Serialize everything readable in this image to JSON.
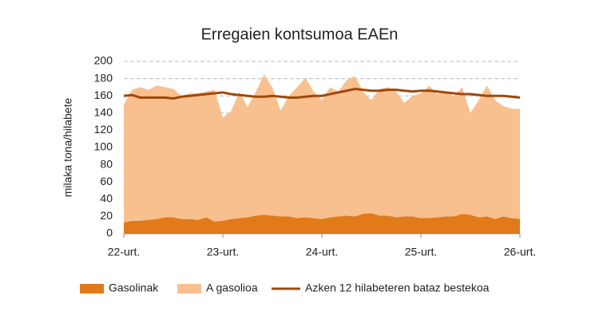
{
  "chart_data": {
    "type": "area",
    "stacked": true,
    "grid": true,
    "legend_position": "bottom",
    "title": "Erregaien kontsumoa EAEn",
    "ylabel": "milaka tona/hilabete",
    "categories": [
      "22-urt.",
      null,
      null,
      null,
      null,
      null,
      null,
      null,
      null,
      null,
      null,
      null,
      "23-urt.",
      null,
      null,
      null,
      null,
      null,
      null,
      null,
      null,
      null,
      null,
      null,
      "24-urt.",
      null,
      null,
      null,
      null,
      null,
      null,
      null,
      null,
      null,
      null,
      null,
      "25-urt.",
      null,
      null,
      null,
      null,
      null,
      null,
      null,
      null,
      null,
      null,
      null,
      "26-urt."
    ],
    "ylim": [
      0,
      200
    ],
    "yticks": [
      0,
      20,
      40,
      60,
      80,
      100,
      120,
      140,
      160,
      180,
      200
    ],
    "series": [
      {
        "name": "Gasolinak",
        "color": "#e07a1a",
        "values": [
          13,
          15,
          15,
          16,
          17,
          19,
          19,
          17,
          17,
          16,
          19,
          14,
          15,
          17,
          18,
          19,
          21,
          22,
          21,
          20,
          20,
          18,
          19,
          18,
          17,
          19,
          20,
          21,
          20,
          23,
          24,
          21,
          21,
          19,
          20,
          20,
          18,
          18,
          19,
          20,
          20,
          23,
          22,
          19,
          20,
          17,
          20,
          18,
          17
        ]
      },
      {
        "name": "A gasolioa",
        "color": "#f9c08f",
        "values": [
          137,
          152,
          155,
          151,
          155,
          151,
          149,
          143,
          146,
          147,
          146,
          153,
          120,
          125,
          147,
          128,
          144,
          163,
          149,
          123,
          140,
          152,
          162,
          147,
          138,
          151,
          145,
          157,
          163,
          142,
          131,
          147,
          149,
          146,
          132,
          140,
          145,
          154,
          143,
          145,
          140,
          147,
          118,
          136,
          152,
          138,
          128,
          127,
          128
        ]
      },
      {
        "name": "Azken 12 hilabeteren bataz bestekoa",
        "color": "#a0480b",
        "kind": "line",
        "values": [
          160,
          161,
          158,
          158,
          158,
          158,
          157,
          159,
          160,
          161,
          162,
          163,
          164,
          162,
          161,
          160,
          159,
          159,
          160,
          159,
          158,
          158,
          159,
          160,
          160,
          162,
          164,
          166,
          168,
          167,
          166,
          166,
          167,
          167,
          166,
          165,
          166,
          166,
          165,
          164,
          163,
          162,
          162,
          161,
          160,
          160,
          160,
          159,
          158
        ]
      }
    ]
  }
}
